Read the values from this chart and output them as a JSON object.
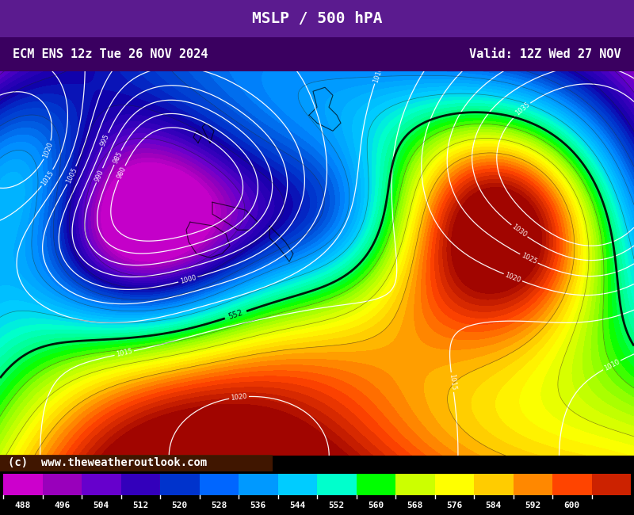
{
  "title_center": "MSLP / 500 hPA",
  "title_left": "ECM ENS 12z Tue 26 NOV 2024",
  "title_right": "Valid: 12Z Wed 27 NOV",
  "header_bg": "#5b1b8f",
  "header2_bg": "#3a0060",
  "copyright_text": "(c)  www.theweatheroutlook.com",
  "copyright_bg": "#4a1a00",
  "colorbar_values": [
    488,
    496,
    504,
    512,
    520,
    528,
    536,
    544,
    552,
    560,
    568,
    576,
    584,
    592,
    600
  ],
  "colorbar_colors": [
    "#cc00cc",
    "#9900cc",
    "#6600cc",
    "#3300cc",
    "#0033cc",
    "#0066ff",
    "#0099ff",
    "#00ccff",
    "#00ffcc",
    "#00ff00",
    "#ccff00",
    "#ffff00",
    "#ffcc00",
    "#ff6600",
    "#ff0000",
    "#cc0000"
  ],
  "map_bg": "#8b2500",
  "figsize": [
    8.0,
    6.5
  ],
  "dpi": 100
}
